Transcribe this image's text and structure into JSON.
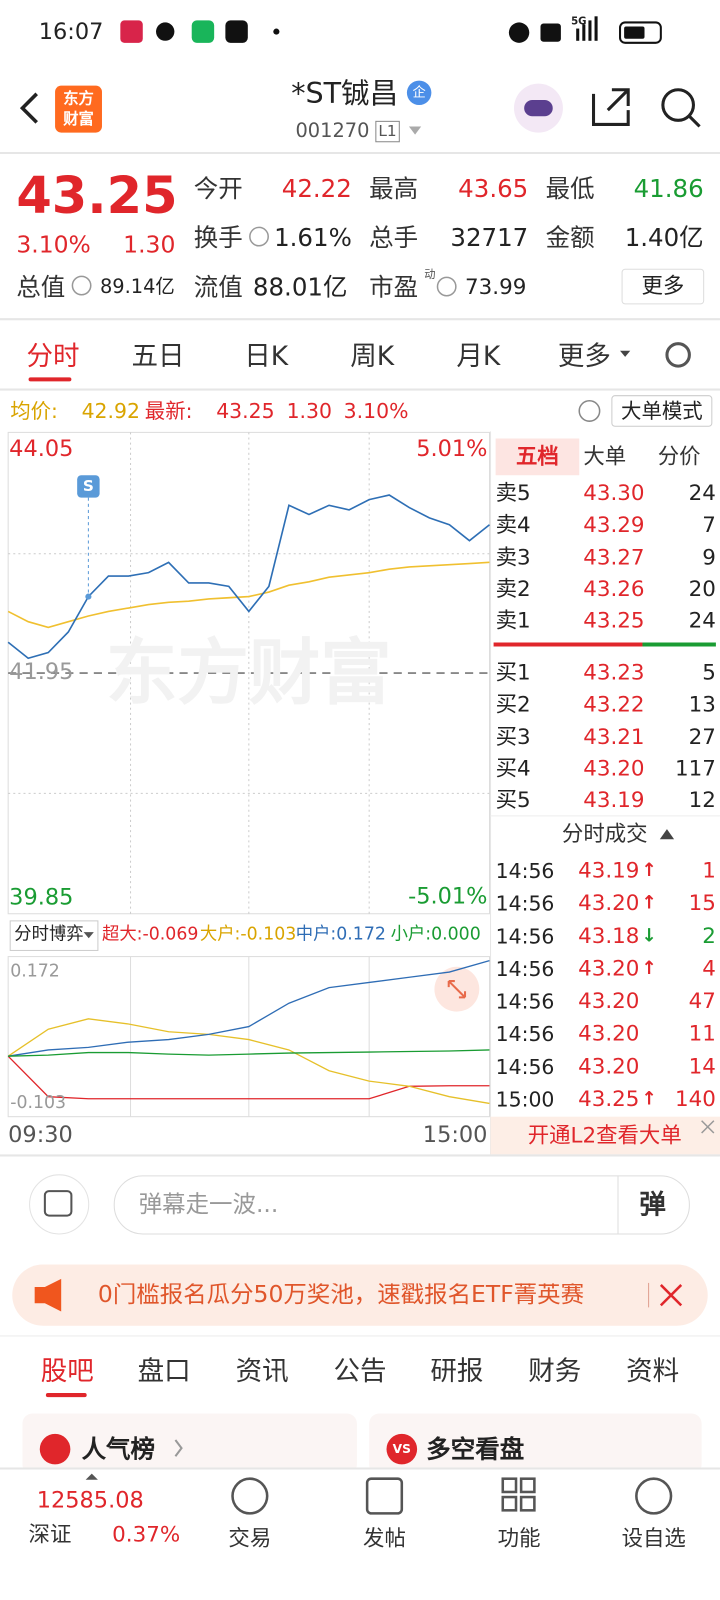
{
  "status_bar": {
    "time": "16:07",
    "signal": "5G"
  },
  "header": {
    "logo": [
      "东方",
      "财富"
    ],
    "title": "*ST铖昌",
    "badge": "企",
    "code": "001270",
    "level": "L1"
  },
  "quote": {
    "price": "43.25",
    "change_pct": "3.10%",
    "change": "1.30",
    "stats": [
      {
        "label": "今开",
        "value": "42.22"
      },
      {
        "label": "最高",
        "value": "43.65"
      },
      {
        "label": "最低",
        "value": "41.86"
      },
      {
        "label": "换手",
        "value": "1.61%"
      },
      {
        "label": "总手",
        "value": "32717"
      },
      {
        "label": "金额",
        "value": "1.40亿"
      },
      {
        "label": "总值",
        "value": "89.14亿"
      },
      {
        "label": "流值",
        "value": "88.01亿"
      },
      {
        "label": "市盈",
        "sup": "动",
        "value": "73.99"
      }
    ],
    "more": "更多"
  },
  "chart_tabs": [
    "分时",
    "五日",
    "日K",
    "周K",
    "月K",
    "更多"
  ],
  "summary": {
    "avg_label": "均价:",
    "avg": "42.92",
    "latest_label": "最新:",
    "latest": "43.25",
    "change": "1.30",
    "change_pct": "3.10%",
    "mode": "大单模式"
  },
  "intraday": {
    "watermark": "东方财富",
    "marker": "S",
    "ylim": [
      39.85,
      44.05
    ],
    "yticks": [
      39.85,
      41.95,
      44.05
    ],
    "pct_labels": [
      "5.01%",
      "-5.01%"
    ],
    "xlabels": [
      "09:30",
      "15:00"
    ],
    "price": {
      "color": "#2e6fb5",
      "values": [
        42.22,
        42.08,
        42.13,
        42.31,
        42.62,
        42.8,
        42.8,
        42.83,
        42.92,
        42.74,
        42.74,
        42.71,
        42.49,
        42.71,
        43.42,
        43.34,
        43.42,
        43.38,
        43.47,
        43.51,
        43.4,
        43.31,
        43.25,
        43.11,
        43.25
      ]
    },
    "average": {
      "color": "#f0c030",
      "values": [
        42.49,
        42.4,
        42.35,
        42.4,
        42.45,
        42.49,
        42.52,
        42.55,
        42.57,
        42.58,
        42.6,
        42.61,
        42.62,
        42.66,
        42.72,
        42.75,
        42.79,
        42.81,
        42.83,
        42.86,
        42.88,
        42.89,
        42.9,
        42.91,
        42.92
      ]
    }
  },
  "flow": {
    "selector": "分时博弈",
    "ylim": [
      -0.103,
      0.172
    ],
    "yticks": [
      -0.103,
      0.172
    ],
    "series": [
      {
        "label": "超大:-0.069",
        "color": "#e0262b",
        "values": [
          -0.012,
          -0.09,
          -0.094,
          -0.094,
          -0.094,
          -0.094,
          -0.094,
          -0.094,
          -0.094,
          -0.094,
          -0.07,
          -0.069,
          -0.069
        ]
      },
      {
        "label": "大户:-0.103",
        "color": "#e6c02a",
        "values": [
          -0.012,
          0.04,
          0.06,
          0.05,
          0.035,
          0.03,
          0.02,
          0.0,
          -0.04,
          -0.06,
          -0.07,
          -0.09,
          -0.103
        ]
      },
      {
        "label": "中户:0.172",
        "color": "#2f6db5",
        "values": [
          -0.012,
          0.0,
          0.005,
          0.015,
          0.02,
          0.03,
          0.045,
          0.09,
          0.12,
          0.13,
          0.14,
          0.15,
          0.172
        ]
      },
      {
        "label": "小户:0.000",
        "color": "#1a9c33",
        "values": [
          -0.012,
          -0.01,
          -0.005,
          -0.005,
          -0.008,
          -0.01,
          -0.008,
          -0.006,
          -0.005,
          -0.004,
          -0.003,
          -0.002,
          0.0
        ]
      }
    ]
  },
  "order_book": {
    "tabs": [
      "五档",
      "大单",
      "分价"
    ],
    "asks": [
      {
        "side": "卖5",
        "price": "43.30",
        "volume": "24"
      },
      {
        "side": "卖4",
        "price": "43.29",
        "volume": "7"
      },
      {
        "side": "卖3",
        "price": "43.27",
        "volume": "9"
      },
      {
        "side": "卖2",
        "price": "43.26",
        "volume": "20"
      },
      {
        "side": "卖1",
        "price": "43.25",
        "volume": "24"
      }
    ],
    "bids": [
      {
        "side": "买1",
        "price": "43.23",
        "volume": "5"
      },
      {
        "side": "买2",
        "price": "43.22",
        "volume": "13"
      },
      {
        "side": "买3",
        "price": "43.21",
        "volume": "27"
      },
      {
        "side": "买4",
        "price": "43.20",
        "volume": "117"
      },
      {
        "side": "买5",
        "price": "43.19",
        "volume": "12"
      }
    ]
  },
  "trades": {
    "title": "分时成交",
    "rows": [
      {
        "time": "14:56",
        "price": "43.19",
        "arrow": "↑",
        "volume": "1"
      },
      {
        "time": "14:56",
        "price": "43.20",
        "arrow": "↑",
        "volume": "15"
      },
      {
        "time": "14:56",
        "price": "43.18",
        "arrow": "↓",
        "volume": "2"
      },
      {
        "time": "14:56",
        "price": "43.20",
        "arrow": "↑",
        "volume": "4"
      },
      {
        "time": "14:56",
        "price": "43.20",
        "volume": "47"
      },
      {
        "time": "14:56",
        "price": "43.20",
        "volume": "11"
      },
      {
        "time": "14:56",
        "price": "43.20",
        "volume": "14"
      },
      {
        "time": "15:00",
        "price": "43.25",
        "arrow": "↑",
        "volume": "140"
      }
    ],
    "l2": "开通L2查看大单"
  },
  "comment": {
    "placeholder": "弹幕走一波...",
    "button": "弹"
  },
  "banner": {
    "text": "0门槛报名瓜分50万奖池，速戳报名ETF菁英赛"
  },
  "section_tabs": [
    "股吧",
    "盘口",
    "资讯",
    "公告",
    "研报",
    "财务",
    "资料"
  ],
  "cards": [
    {
      "title": "人气榜"
    },
    {
      "icon": "VS",
      "title": "多空看盘"
    }
  ],
  "bottom_bar": {
    "index_value": "12585.08",
    "index_name": "深证",
    "index_change": "0.37%",
    "items": [
      "交易",
      "发帖",
      "功能",
      "设自选"
    ]
  }
}
